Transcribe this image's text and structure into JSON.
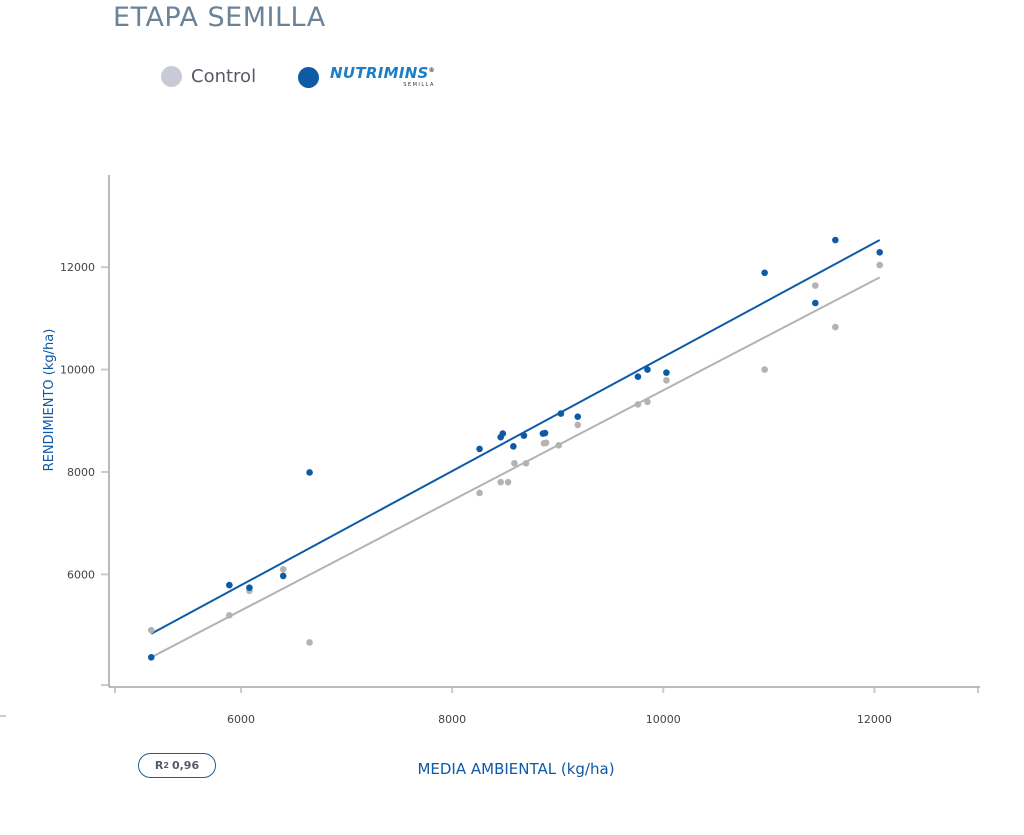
{
  "page": {
    "title": "ETAPA SEMILLA"
  },
  "legend": {
    "control_label": "Control",
    "brand_name": "NUTRIMINS",
    "brand_mark": "®",
    "brand_sub": "SEMILLA"
  },
  "r2": {
    "prefix": "R",
    "sup": "2",
    "value": "0,96"
  },
  "colors": {
    "control": "#b3b3b3",
    "control_legend": "#c8cad7",
    "nutrimins": "#0e5aa7",
    "axis": "#777777",
    "tick": "#c8cad7"
  },
  "chart_data": {
    "type": "scatter",
    "title": "ETAPA SEMILLA",
    "xlabel": "MEDIA AMBIENTAL (kg/ha)",
    "ylabel": "RENDIMIENTO (kg/ha)",
    "xlim": [
      4750,
      13000
    ],
    "ylim": [
      3800,
      13800
    ],
    "xticks": [
      6000,
      8000,
      10000,
      12000
    ],
    "yticks": [
      6000,
      8000,
      10000,
      12000
    ],
    "xtick_labels": [
      "6000",
      "8000",
      "10000",
      "12000"
    ],
    "ytick_labels": [
      "6000",
      "8000",
      "10000",
      "12000"
    ],
    "series": [
      {
        "name": "Control",
        "x": [
          5150,
          5890,
          6080,
          6400,
          6650,
          8260,
          8460,
          8530,
          8590,
          8700,
          8870,
          8890,
          9010,
          9190,
          9760,
          9850,
          10030,
          10960,
          11440,
          11630,
          12050
        ],
        "y": [
          4910,
          5200,
          5680,
          6100,
          4670,
          7590,
          7800,
          7800,
          8170,
          8170,
          8560,
          8570,
          8520,
          8920,
          9320,
          9370,
          9790,
          10000,
          11640,
          10830,
          12040
        ],
        "trend": {
          "x": [
            5150,
            12050
          ],
          "y": [
            4380,
            11800
          ]
        }
      },
      {
        "name": "NUTRIMINS",
        "x": [
          5150,
          5890,
          6080,
          6400,
          6650,
          8260,
          8460,
          8480,
          8580,
          8680,
          8860,
          8880,
          9030,
          9190,
          9760,
          9850,
          10030,
          10960,
          11440,
          11630,
          12050
        ],
        "y": [
          4380,
          5790,
          5740,
          5970,
          7990,
          8450,
          8680,
          8750,
          8500,
          8710,
          8750,
          8760,
          9140,
          9080,
          9860,
          10000,
          9940,
          11890,
          11300,
          12530,
          12290
        ],
        "trend": {
          "x": [
            5150,
            12050
          ],
          "y": [
            4840,
            12530
          ]
        }
      }
    ]
  }
}
